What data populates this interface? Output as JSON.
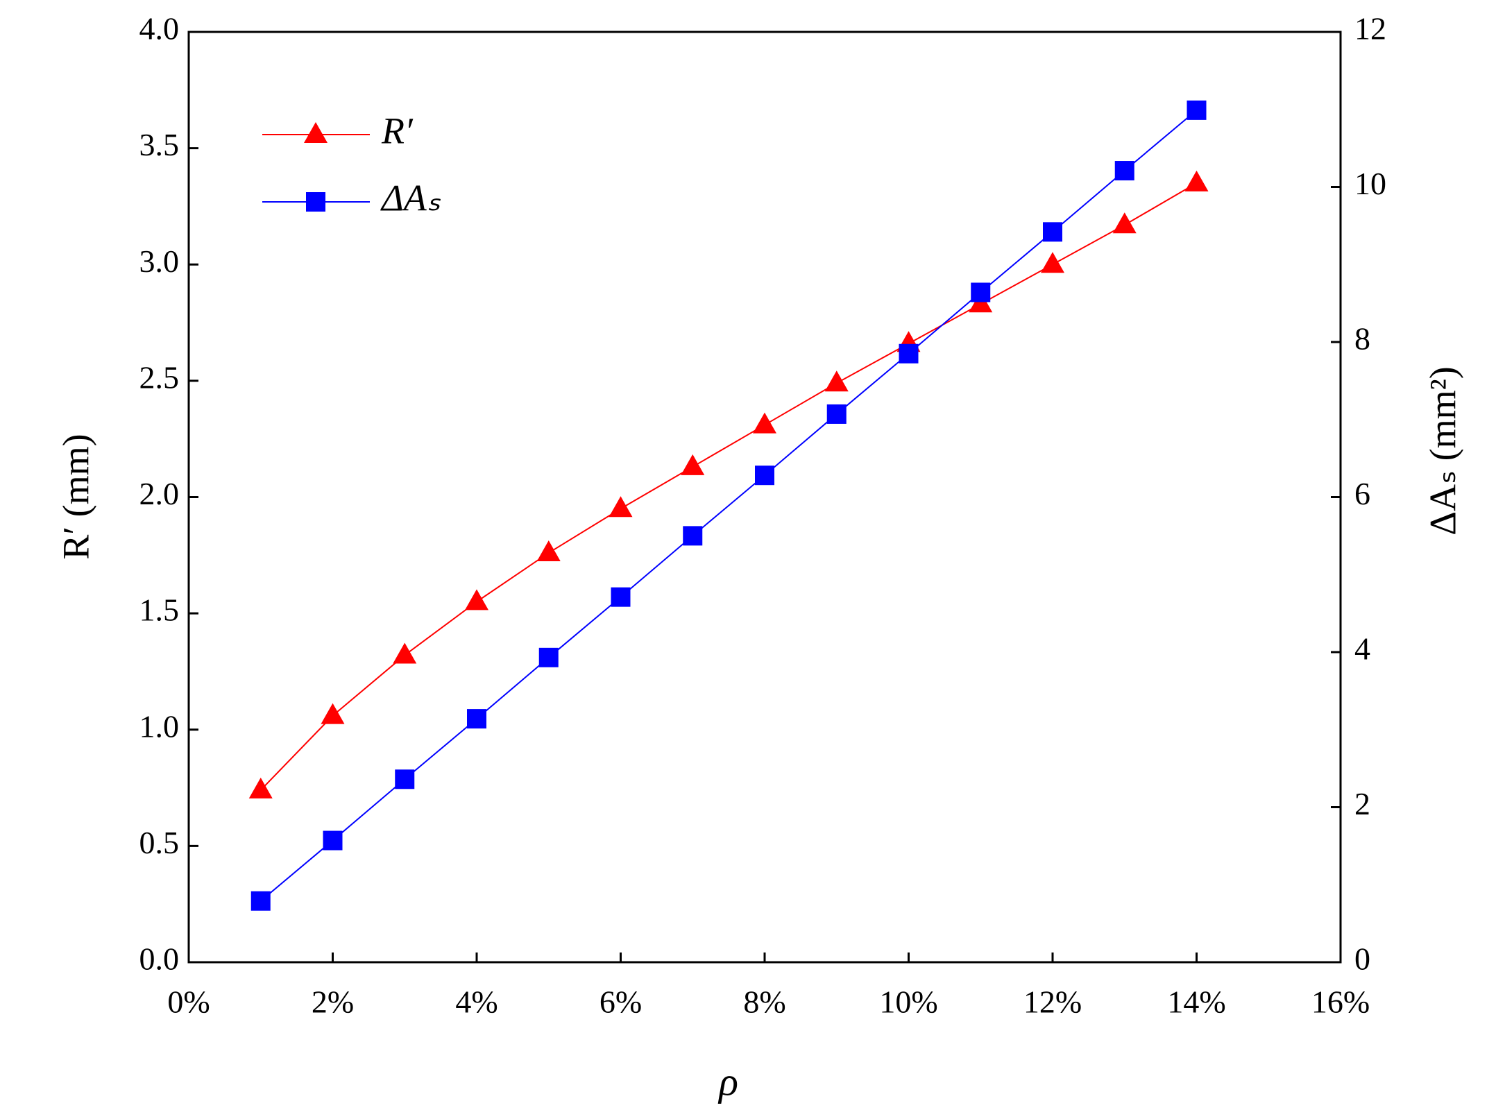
{
  "chart_data": {
    "type": "line",
    "x_label": "ρ",
    "y_label": "R′ (mm)",
    "y2_label": "ΔAₛ (mm²)",
    "x": [
      1,
      2,
      3,
      4,
      5,
      6,
      7,
      8,
      9,
      10,
      11,
      12,
      13,
      14
    ],
    "xlim": [
      0,
      16
    ],
    "xticks": [
      {
        "value": 0,
        "label": "0%"
      },
      {
        "value": 2,
        "label": "2%"
      },
      {
        "value": 4,
        "label": "4%"
      },
      {
        "value": 6,
        "label": "6%"
      },
      {
        "value": 8,
        "label": "8%"
      },
      {
        "value": 10,
        "label": "10%"
      },
      {
        "value": 12,
        "label": "12%"
      },
      {
        "value": 14,
        "label": "14%"
      },
      {
        "value": 16,
        "label": "16%"
      }
    ],
    "ylim": [
      0,
      4
    ],
    "yticks": [
      {
        "value": 0,
        "label": "0.0"
      },
      {
        "value": 0.5,
        "label": "0.5"
      },
      {
        "value": 1,
        "label": "1.0"
      },
      {
        "value": 1.5,
        "label": "1.5"
      },
      {
        "value": 2,
        "label": "2.0"
      },
      {
        "value": 2.5,
        "label": "2.5"
      },
      {
        "value": 3,
        "label": "3.0"
      },
      {
        "value": 3.5,
        "label": "3.5"
      },
      {
        "value": 4,
        "label": "4.0"
      }
    ],
    "y2lim": [
      0,
      12
    ],
    "y2ticks": [
      0,
      2,
      4,
      6,
      8,
      10,
      12
    ],
    "legend": "upper left",
    "series": [
      {
        "name": "R′",
        "color": "#ff0000",
        "marker": "triangle",
        "values": [
          0.74,
          1.06,
          1.32,
          1.55,
          1.76,
          1.95,
          2.13,
          2.31,
          2.49,
          2.66,
          2.83,
          3.0,
          3.17,
          3.35
        ]
      },
      {
        "name": "ΔAₛ",
        "color": "#0000ff",
        "marker": "square",
        "axis": "y2",
        "values": [
          0.79,
          1.57,
          2.36,
          3.14,
          3.93,
          4.71,
          5.5,
          6.28,
          7.07,
          7.85,
          8.64,
          9.42,
          10.21,
          10.99
        ]
      }
    ]
  }
}
